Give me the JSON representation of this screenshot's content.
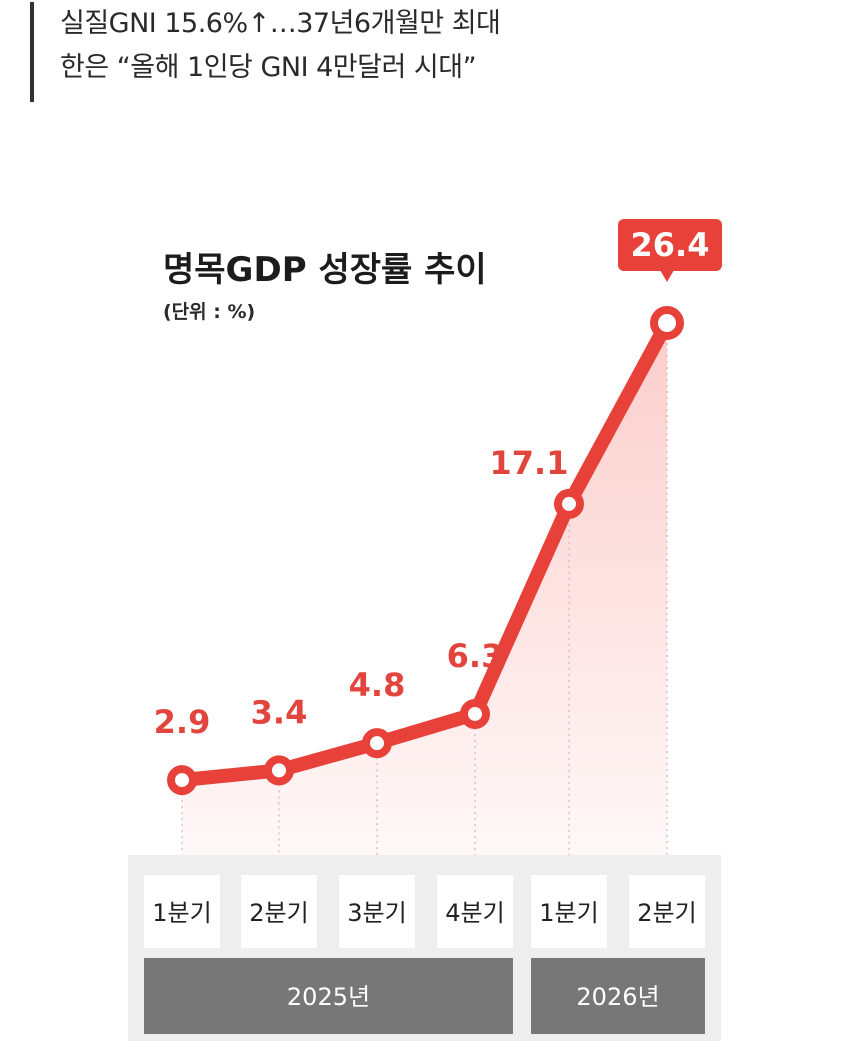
{
  "headline": {
    "line1": "실질GNI 15.6%↑…37년6개월만 최대",
    "line2": "한은 “올해 1인당 GNI 4만달러 시대”"
  },
  "colors": {
    "line": "#e8413a",
    "label": "#e2453d",
    "category_bg": "#eeeeee",
    "year_bg": "#777777"
  },
  "chart_data": {
    "type": "line",
    "title": "명목GDP 성장률 추이",
    "unit_label": "(단위 : %)",
    "categories": [
      "1분기",
      "2분기",
      "3분기",
      "4분기",
      "1분기",
      "2분기"
    ],
    "values": [
      2.9,
      3.4,
      4.8,
      6.3,
      17.1,
      26.4
    ],
    "value_labels": [
      "2.9",
      "3.4",
      "4.8",
      "6.3",
      "17.1",
      "26.4"
    ],
    "highlight_index": 5,
    "year_groups": [
      {
        "label": "2025년",
        "span": 4
      },
      {
        "label": "2026년",
        "span": 2
      }
    ]
  }
}
